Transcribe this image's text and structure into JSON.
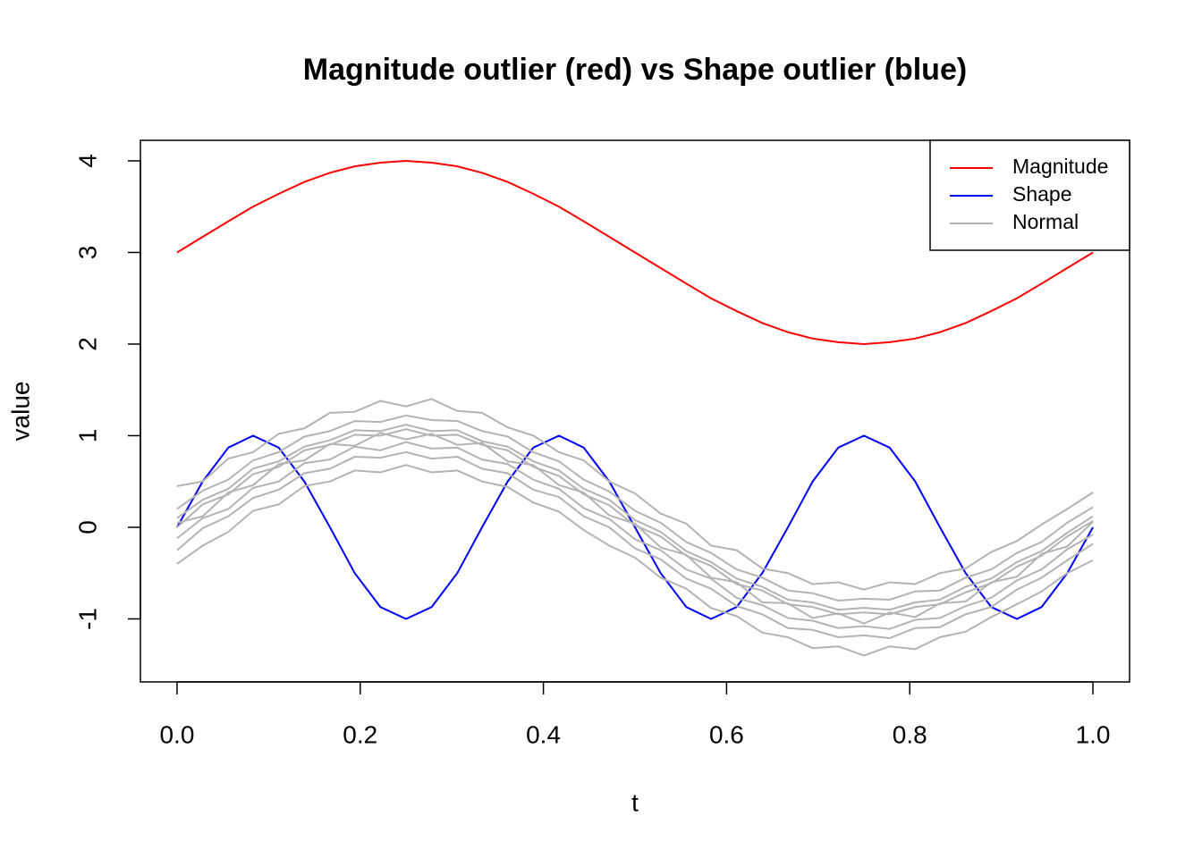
{
  "chart_data": {
    "type": "line",
    "title": "Magnitude outlier (red) vs Shape outlier (blue)",
    "x_label": "t",
    "y_label": "value",
    "x": [
      0,
      0.028,
      0.056,
      0.083,
      0.111,
      0.139,
      0.167,
      0.194,
      0.222,
      0.25,
      0.278,
      0.306,
      0.333,
      0.361,
      0.389,
      0.417,
      0.444,
      0.472,
      0.5,
      0.528,
      0.556,
      0.583,
      0.611,
      0.639,
      0.667,
      0.694,
      0.722,
      0.75,
      0.778,
      0.806,
      0.833,
      0.861,
      0.889,
      0.917,
      0.944,
      0.972,
      1
    ],
    "xlim": [
      -0.04,
      1.04
    ],
    "xticks": [
      {
        "value": 0,
        "label": "0.0"
      },
      {
        "value": 0.2,
        "label": "0.2"
      },
      {
        "value": 0.4,
        "label": "0.4"
      },
      {
        "value": 0.6,
        "label": "0.6"
      },
      {
        "value": 0.8,
        "label": "0.8"
      },
      {
        "value": 1,
        "label": "1.0"
      }
    ],
    "ylim": [
      -1.688,
      4.224
    ],
    "yticks": [
      -1,
      0,
      1,
      2,
      3,
      4
    ],
    "legend": "top-right",
    "series": [
      {
        "name": "Magnitude",
        "color": "#ff0000",
        "values": [
          3,
          3.17,
          3.34,
          3.5,
          3.64,
          3.77,
          3.87,
          3.94,
          3.98,
          4,
          3.98,
          3.94,
          3.87,
          3.77,
          3.64,
          3.5,
          3.34,
          3.17,
          3,
          2.83,
          2.66,
          2.5,
          2.36,
          2.23,
          2.13,
          2.06,
          2.02,
          2,
          2.02,
          2.06,
          2.13,
          2.23,
          2.36,
          2.5,
          2.66,
          2.83,
          3
        ]
      },
      {
        "name": "Shape",
        "color": "#0000ff",
        "values": [
          0,
          0.5,
          0.87,
          1,
          0.87,
          0.5,
          0,
          -0.5,
          -0.87,
          -1,
          -0.87,
          -0.5,
          0,
          0.5,
          0.87,
          1,
          0.87,
          0.5,
          0,
          -0.5,
          -0.87,
          -1,
          -0.87,
          -0.5,
          0,
          0.5,
          0.87,
          1,
          0.87,
          0.5,
          0,
          -0.5,
          -0.87,
          -1,
          -0.87,
          -0.5,
          0
        ]
      },
      {
        "name": "Normal",
        "color": "#b3b3b3",
        "values": [
          [
            0.2,
            0.4,
            0.52,
            0.73,
            0.82,
            0.99,
            1.05,
            1.16,
            1.15,
            1.22,
            1.17,
            1.16,
            1.05,
            0.99,
            0.82,
            0.72,
            0.52,
            0.39,
            0.18,
            0.05,
            -0.16,
            -0.28,
            -0.46,
            -0.55,
            -0.69,
            -0.72,
            -0.8,
            -0.78,
            -0.79,
            -0.7,
            -0.69,
            -0.55,
            -0.46,
            -0.28,
            -0.16,
            0.05,
            0.22
          ],
          [
            -0.25,
            -0.01,
            0.12,
            0.32,
            0.41,
            0.59,
            0.64,
            0.77,
            0.76,
            0.82,
            0.75,
            0.77,
            0.64,
            0.59,
            0.41,
            0.33,
            0.12,
            0,
            -0.23,
            -0.35,
            -0.56,
            -0.67,
            -0.86,
            -0.95,
            -1.1,
            -1.12,
            -1.2,
            -1.18,
            -1.21,
            -1.1,
            -1.09,
            -0.95,
            -0.87,
            -0.68,
            -0.55,
            -0.36,
            -0.18
          ],
          [
            0.05,
            0.12,
            0.38,
            0.46,
            0.69,
            0.73,
            0.91,
            0.89,
            1.03,
            0.96,
            1.02,
            0.9,
            0.92,
            0.72,
            0.68,
            0.46,
            0.38,
            0.13,
            0.04,
            -0.22,
            -0.3,
            -0.55,
            -0.6,
            -0.82,
            -0.83,
            -0.99,
            -0.94,
            -1.05,
            -0.93,
            -0.98,
            -0.83,
            -0.81,
            -0.6,
            -0.54,
            -0.29,
            -0.21,
            0.06
          ],
          [
            0.45,
            0.5,
            0.75,
            0.82,
            1.02,
            1.08,
            1.25,
            1.26,
            1.38,
            1.32,
            1.4,
            1.27,
            1.25,
            1.09,
            1,
            0.82,
            0.73,
            0.5,
            0.37,
            0.15,
            0.04,
            -0.2,
            -0.25,
            -0.45,
            -0.5,
            -0.62,
            -0.6,
            -0.68,
            -0.6,
            -0.62,
            -0.5,
            -0.45,
            -0.27,
            -0.15,
            0.03,
            0.2,
            0.38
          ],
          [
            -0.4,
            -0.2,
            -0.05,
            0.18,
            0.25,
            0.45,
            0.5,
            0.62,
            0.6,
            0.68,
            0.6,
            0.62,
            0.5,
            0.44,
            0.27,
            0.17,
            -0.03,
            -0.2,
            -0.33,
            -0.55,
            -0.67,
            -0.88,
            -0.97,
            -1.15,
            -1.2,
            -1.32,
            -1.3,
            -1.4,
            -1.3,
            -1.33,
            -1.2,
            -1.14,
            -0.98,
            -0.84,
            -0.7,
            -0.5,
            -0.36
          ],
          [
            0.1,
            0.3,
            0.42,
            0.64,
            0.72,
            0.88,
            0.95,
            1.06,
            1.05,
            1.12,
            1.05,
            1.06,
            0.94,
            0.88,
            0.72,
            0.62,
            0.42,
            0.3,
            0.08,
            -0.05,
            -0.26,
            -0.38,
            -0.56,
            -0.65,
            -0.79,
            -0.82,
            -0.9,
            -0.88,
            -0.9,
            -0.82,
            -0.79,
            -0.65,
            -0.56,
            -0.38,
            -0.26,
            -0.06,
            0.12
          ],
          [
            -0.12,
            0.1,
            0.2,
            0.43,
            0.5,
            0.7,
            0.74,
            0.88,
            0.84,
            0.93,
            0.86,
            0.87,
            0.74,
            0.69,
            0.52,
            0.42,
            0.21,
            0.09,
            -0.13,
            -0.25,
            -0.46,
            -0.56,
            -0.77,
            -0.85,
            -0.99,
            -1.02,
            -1.1,
            -1.08,
            -1.11,
            -1.01,
            -0.99,
            -0.86,
            -0.77,
            -0.58,
            -0.46,
            -0.24,
            -0.08
          ],
          [
            0,
            0.25,
            0.36,
            0.58,
            0.66,
            0.84,
            0.9,
            1.01,
            1,
            1.07,
            1,
            1.01,
            0.9,
            0.84,
            0.66,
            0.56,
            0.36,
            0.24,
            0.02,
            -0.1,
            -0.31,
            -0.42,
            -0.62,
            -0.69,
            -0.84,
            -0.87,
            -0.95,
            -0.93,
            -0.95,
            -0.87,
            -0.84,
            -0.71,
            -0.61,
            -0.43,
            -0.31,
            -0.1,
            0.07
          ]
        ]
      }
    ]
  }
}
